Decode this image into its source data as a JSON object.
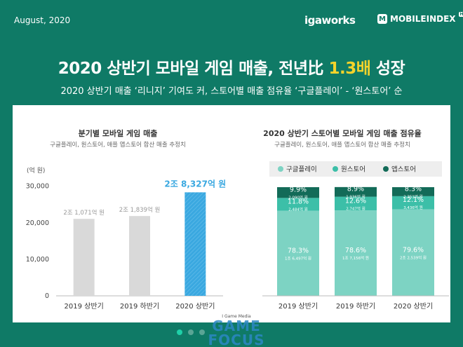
{
  "header": {
    "date": "August, 2020",
    "brand_igaworks": "igaworks",
    "brand_mobileindex": "MOBILEINDEX",
    "brand_hd": "HD",
    "title_main": "2020 상반기 모바일 게임 매출, 전년比 ",
    "title_highlight": "1.3배",
    "title_end": " 성장",
    "subtitle": "2020 상반기 매출 ‘리니지’ 기여도 커, 스토어별 매출 점유율 ‘구글플레이’ - ‘원스토어’ 순"
  },
  "watermark": {
    "small": "I Game Media",
    "name": "GAME FOCUS"
  },
  "colors": {
    "background": "#0f7a66",
    "highlight": "#f5d32b",
    "bar_gray": "#d9d9d9",
    "bar_blue": "#3aa8e0",
    "google": "#7dd3c3",
    "onestore": "#3cbfa8",
    "apple": "#136b58"
  },
  "chart_data": [
    {
      "type": "bar",
      "title": "분기별 모바일 게임 매출",
      "subtitle": "구글플레이, 원스토어, 애플 앱스토어 합산 매출 추정치",
      "ylabel": "(억 원)",
      "categories": [
        "2019 상반기",
        "2019 하반기",
        "2020 상반기"
      ],
      "values": [
        21071,
        21839,
        28327
      ],
      "data_labels": [
        "2조 1,071억 원",
        "2조 1,839억 원",
        "2조 8,327억 원"
      ],
      "yticks": [
        0,
        10000,
        20000,
        30000
      ],
      "ytick_labels": [
        "0",
        "10,000",
        "20,000",
        "30,000"
      ],
      "ylim": [
        0,
        33000
      ]
    },
    {
      "type": "bar",
      "stacked": true,
      "title": "2020 상반기 스토어별 모바일 게임 매출 점유율",
      "subtitle": "구글플레이, 원스토어, 애플 앱스토어 합산 매출 추정치",
      "categories": [
        "2019 상반기",
        "2019 하반기",
        "2020 상반기"
      ],
      "legend_position": "top",
      "series": [
        {
          "name": "구글플레이",
          "values": [
            78.3,
            78.6,
            79.6
          ],
          "pct_labels": [
            "78.3%",
            "78.6%",
            "79.6%"
          ],
          "amount_labels": [
            "1조 6,497억 원",
            "1조 7,156억 원",
            "2조 2,539억 원"
          ]
        },
        {
          "name": "원스토어",
          "values": [
            11.8,
            12.6,
            12.1
          ],
          "pct_labels": [
            "11.8%",
            "12.6%",
            "12.1%"
          ],
          "amount_labels": [
            "2,484억 원",
            "2,747억 원",
            "3,436억 원"
          ]
        },
        {
          "name": "앱스토어",
          "values": [
            9.9,
            8.9,
            8.3
          ],
          "pct_labels": [
            "9.9%",
            "8.9%",
            "8.3%"
          ],
          "amount_labels": [
            "2,090억 원",
            "1,936억 원",
            "2,351억 원"
          ]
        }
      ]
    }
  ]
}
